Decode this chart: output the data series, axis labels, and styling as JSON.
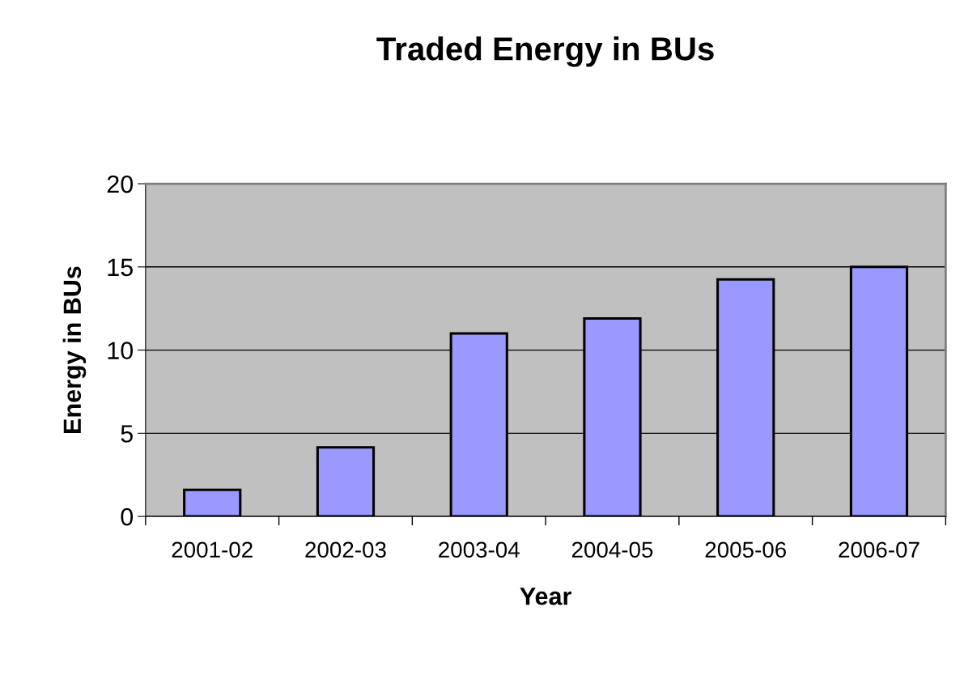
{
  "chart_data": {
    "type": "bar",
    "title": "Traded Energy in BUs",
    "xlabel": "Year",
    "ylabel": "Energy in BUs",
    "categories": [
      "2001-02",
      "2002-03",
      "2003-04",
      "2004-05",
      "2005-06",
      "2006-07"
    ],
    "values": [
      1.6,
      4.15,
      11.0,
      11.9,
      14.25,
      15.0
    ],
    "color": "#9999ff",
    "ylim": [
      0,
      20
    ],
    "yticks": [
      0,
      5,
      10,
      15,
      20
    ],
    "grid": "y",
    "legend": false
  }
}
